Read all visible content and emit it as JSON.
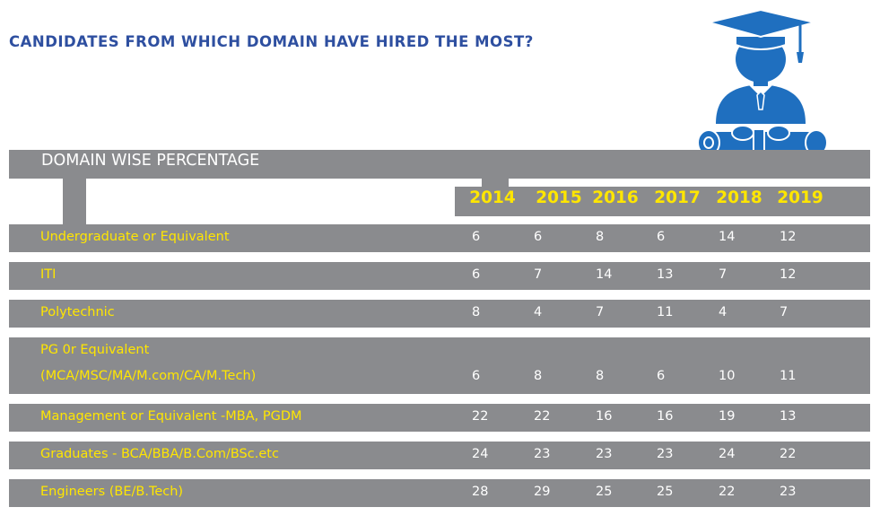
{
  "title": "CANDIDATES FROM WHICH DOMAIN HAVE HIRED THE MOST?",
  "table_header": "DOMAIN WISE PERCENTAGE",
  "icons": {
    "graduate": "graduate-with-diploma-icon"
  },
  "colors": {
    "title": "#2e4fa0",
    "bar": "#8a8b8e",
    "label": "#ffe600",
    "value": "#ffffff",
    "icon": "#1f6fbf"
  },
  "chart_data": {
    "type": "table",
    "title": "CANDIDATES FROM WHICH DOMAIN HAVE HIRED THE MOST?",
    "subtitle": "DOMAIN WISE PERCENTAGE",
    "years": [
      "2014",
      "2015",
      "2016",
      "2017",
      "2018",
      "2019"
    ],
    "rows": [
      {
        "label": "Undergraduate or Equivalent",
        "values": [
          "6",
          "6",
          "8",
          "6",
          "14",
          "12"
        ]
      },
      {
        "label": "ITI",
        "values": [
          "6",
          "7",
          "14",
          "13",
          "7",
          "12"
        ]
      },
      {
        "label": "Polytechnic",
        "values": [
          "8",
          "4",
          "7",
          "11",
          "4",
          "7"
        ]
      },
      {
        "label": "PG 0r Equivalent",
        "label2": "(MCA/MSC/MA/M.com/CA/M.Tech)",
        "values": [
          "6",
          "8",
          "8",
          "6",
          "10",
          "11"
        ]
      },
      {
        "label": "Management or Equivalent -MBA, PGDM",
        "values": [
          "22",
          "22",
          "16",
          "16",
          "19",
          "13"
        ]
      },
      {
        "label": "Graduates - BCA/BBA/B.Com/BSc.etc",
        "values": [
          "24",
          "23",
          "23",
          "23",
          "24",
          "22"
        ]
      },
      {
        "label": "Engineers (BE/B.Tech)",
        "values": [
          "28",
          "29",
          "25",
          "25",
          "22",
          "23"
        ]
      }
    ]
  }
}
